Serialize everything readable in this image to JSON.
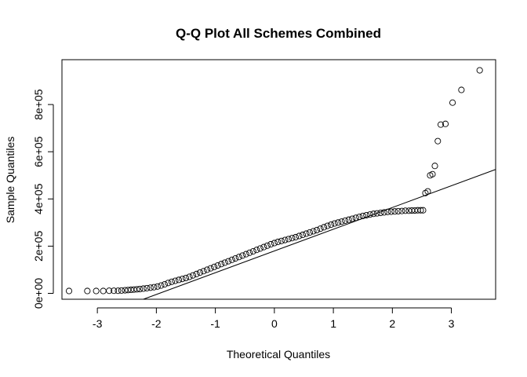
{
  "chart_data": {
    "type": "scatter",
    "title": "Q-Q Plot All Schemes Combined",
    "xlabel": "Theoretical Quantiles",
    "ylabel": "Sample Quantiles",
    "xlim": [
      -3.6,
      3.75
    ],
    "ylim": [
      -25000,
      990000
    ],
    "x_ticks": [
      -3,
      -2,
      -1,
      0,
      1,
      2,
      3
    ],
    "x_tick_labels": [
      "-3",
      "-2",
      "-1",
      "0",
      "1",
      "2",
      "3"
    ],
    "y_ticks": [
      0,
      200000,
      400000,
      600000,
      800000
    ],
    "y_tick_labels": [
      "0e+00",
      "2e+05",
      "4e+05",
      "6e+05",
      "8e+05"
    ],
    "grid": false,
    "reference_line": {
      "x": [
        -2.22,
        3.75
      ],
      "y": [
        -25000,
        525000
      ]
    },
    "series": [
      {
        "marker": "open-circle",
        "x": [
          -3.48,
          -3.17,
          -3.02,
          -2.9,
          -2.8,
          -2.72,
          -2.65,
          -2.59,
          -2.53,
          -2.48,
          -2.43,
          -2.38,
          -2.33,
          -2.28,
          -2.22,
          -2.16,
          -2.1,
          -2.04,
          -1.98,
          -1.92,
          -1.86,
          -1.8,
          -1.74,
          -1.68,
          -1.62,
          -1.56,
          -1.5,
          -1.44,
          -1.38,
          -1.32,
          -1.26,
          -1.2,
          -1.14,
          -1.08,
          -1.02,
          -0.96,
          -0.9,
          -0.84,
          -0.78,
          -0.72,
          -0.66,
          -0.6,
          -0.54,
          -0.48,
          -0.42,
          -0.36,
          -0.3,
          -0.24,
          -0.18,
          -0.12,
          -0.06,
          0.0,
          0.06,
          0.12,
          0.18,
          0.24,
          0.3,
          0.36,
          0.42,
          0.48,
          0.54,
          0.6,
          0.66,
          0.72,
          0.78,
          0.84,
          0.9,
          0.96,
          1.02,
          1.08,
          1.14,
          1.2,
          1.26,
          1.32,
          1.38,
          1.44,
          1.5,
          1.56,
          1.62,
          1.68,
          1.74,
          1.8,
          1.86,
          1.92,
          1.98,
          2.04,
          2.1,
          2.16,
          2.22,
          2.28,
          2.33,
          2.38,
          2.43,
          2.48,
          2.52,
          2.56,
          2.6,
          2.64,
          2.68,
          2.72,
          2.77,
          2.82,
          2.9,
          3.02,
          3.17,
          3.48
        ],
        "y": [
          10000,
          10000,
          10000,
          10000,
          11000,
          11000,
          11000,
          12000,
          13000,
          14000,
          15000,
          16000,
          17000,
          18000,
          20000,
          22000,
          24000,
          26000,
          29000,
          33000,
          38000,
          44000,
          49000,
          53000,
          57000,
          61000,
          65000,
          70000,
          76000,
          82000,
          88000,
          94000,
          100000,
          106000,
          112000,
          118000,
          124000,
          130000,
          136000,
          142000,
          148000,
          154000,
          160000,
          166000,
          172000,
          178000,
          184000,
          190000,
          196000,
          202000,
          208000,
          213000,
          218000,
          222000,
          226000,
          230000,
          234000,
          238000,
          243000,
          248000,
          253000,
          258000,
          263000,
          268000,
          274000,
          280000,
          286000,
          291000,
          296000,
          300000,
          304000,
          308000,
          312000,
          316000,
          320000,
          324000,
          328000,
          331000,
          334000,
          337000,
          339000,
          341000,
          343000,
          345000,
          346000,
          347000,
          348000,
          349000,
          350000,
          350000,
          351000,
          351000,
          352000,
          352000,
          352000,
          425000,
          432000,
          500000,
          505000,
          540000,
          645000,
          715000,
          718000,
          808000,
          862000,
          945000
        ]
      }
    ]
  }
}
